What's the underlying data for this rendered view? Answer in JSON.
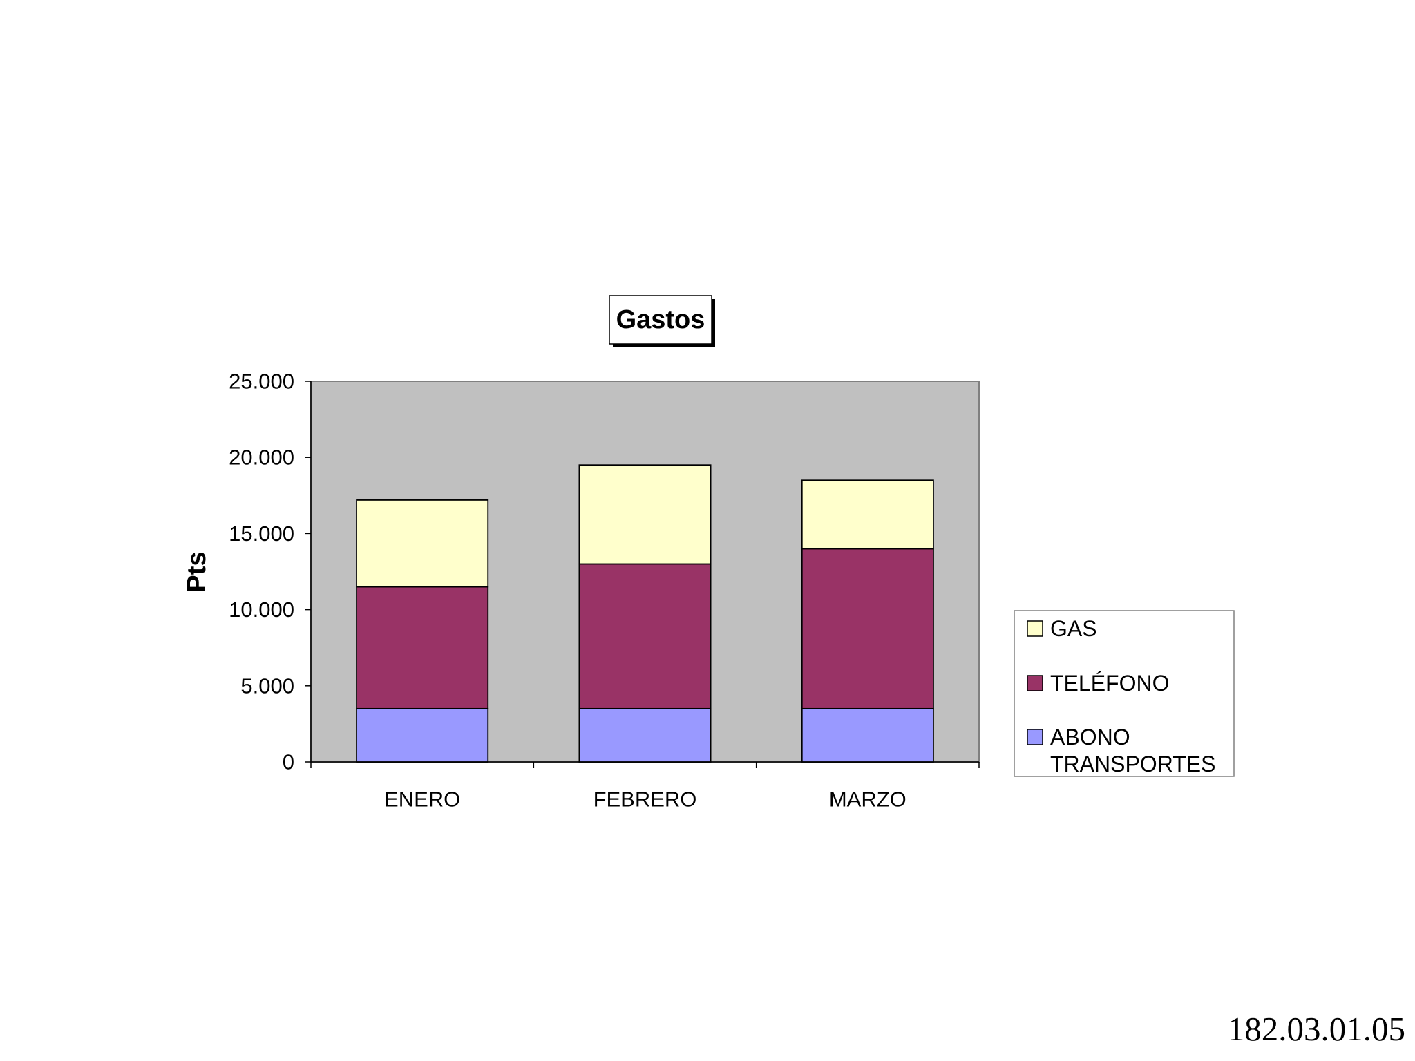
{
  "chart_data": {
    "type": "bar",
    "stacked": true,
    "title": "Gastos",
    "xlabel": "",
    "ylabel": "Pts",
    "ylim": [
      0,
      25000
    ],
    "yticks": [
      0,
      5000,
      10000,
      15000,
      20000,
      25000
    ],
    "ytick_labels": [
      "0",
      "5.000",
      "10.000",
      "15.000",
      "20.000",
      "25.000"
    ],
    "categories": [
      "ENERO",
      "FEBRERO",
      "MARZO"
    ],
    "series": [
      {
        "name": "ABONO TRANSPORTES",
        "values": [
          3500,
          3500,
          3500
        ],
        "color": "#9999ff"
      },
      {
        "name": "TELÉFONO",
        "values": [
          8000,
          9500,
          10500
        ],
        "color": "#993366"
      },
      {
        "name": "GAS",
        "values": [
          5700,
          6500,
          4500
        ],
        "color": "#ffffcc"
      }
    ],
    "legend": {
      "placement": "right",
      "order": [
        "GAS",
        "TELÉFONO",
        "ABONO TRANSPORTES"
      ],
      "labels": {
        "GAS": [
          "GAS"
        ],
        "TELÉFONO": [
          "TELÉFONO"
        ],
        "ABONO TRANSPORTES": [
          "ABONO",
          "TRANSPORTES"
        ]
      }
    },
    "plot_background": "#c0c0c0",
    "grid": false
  },
  "footer": {
    "slide_id": "182.03.01.05"
  }
}
